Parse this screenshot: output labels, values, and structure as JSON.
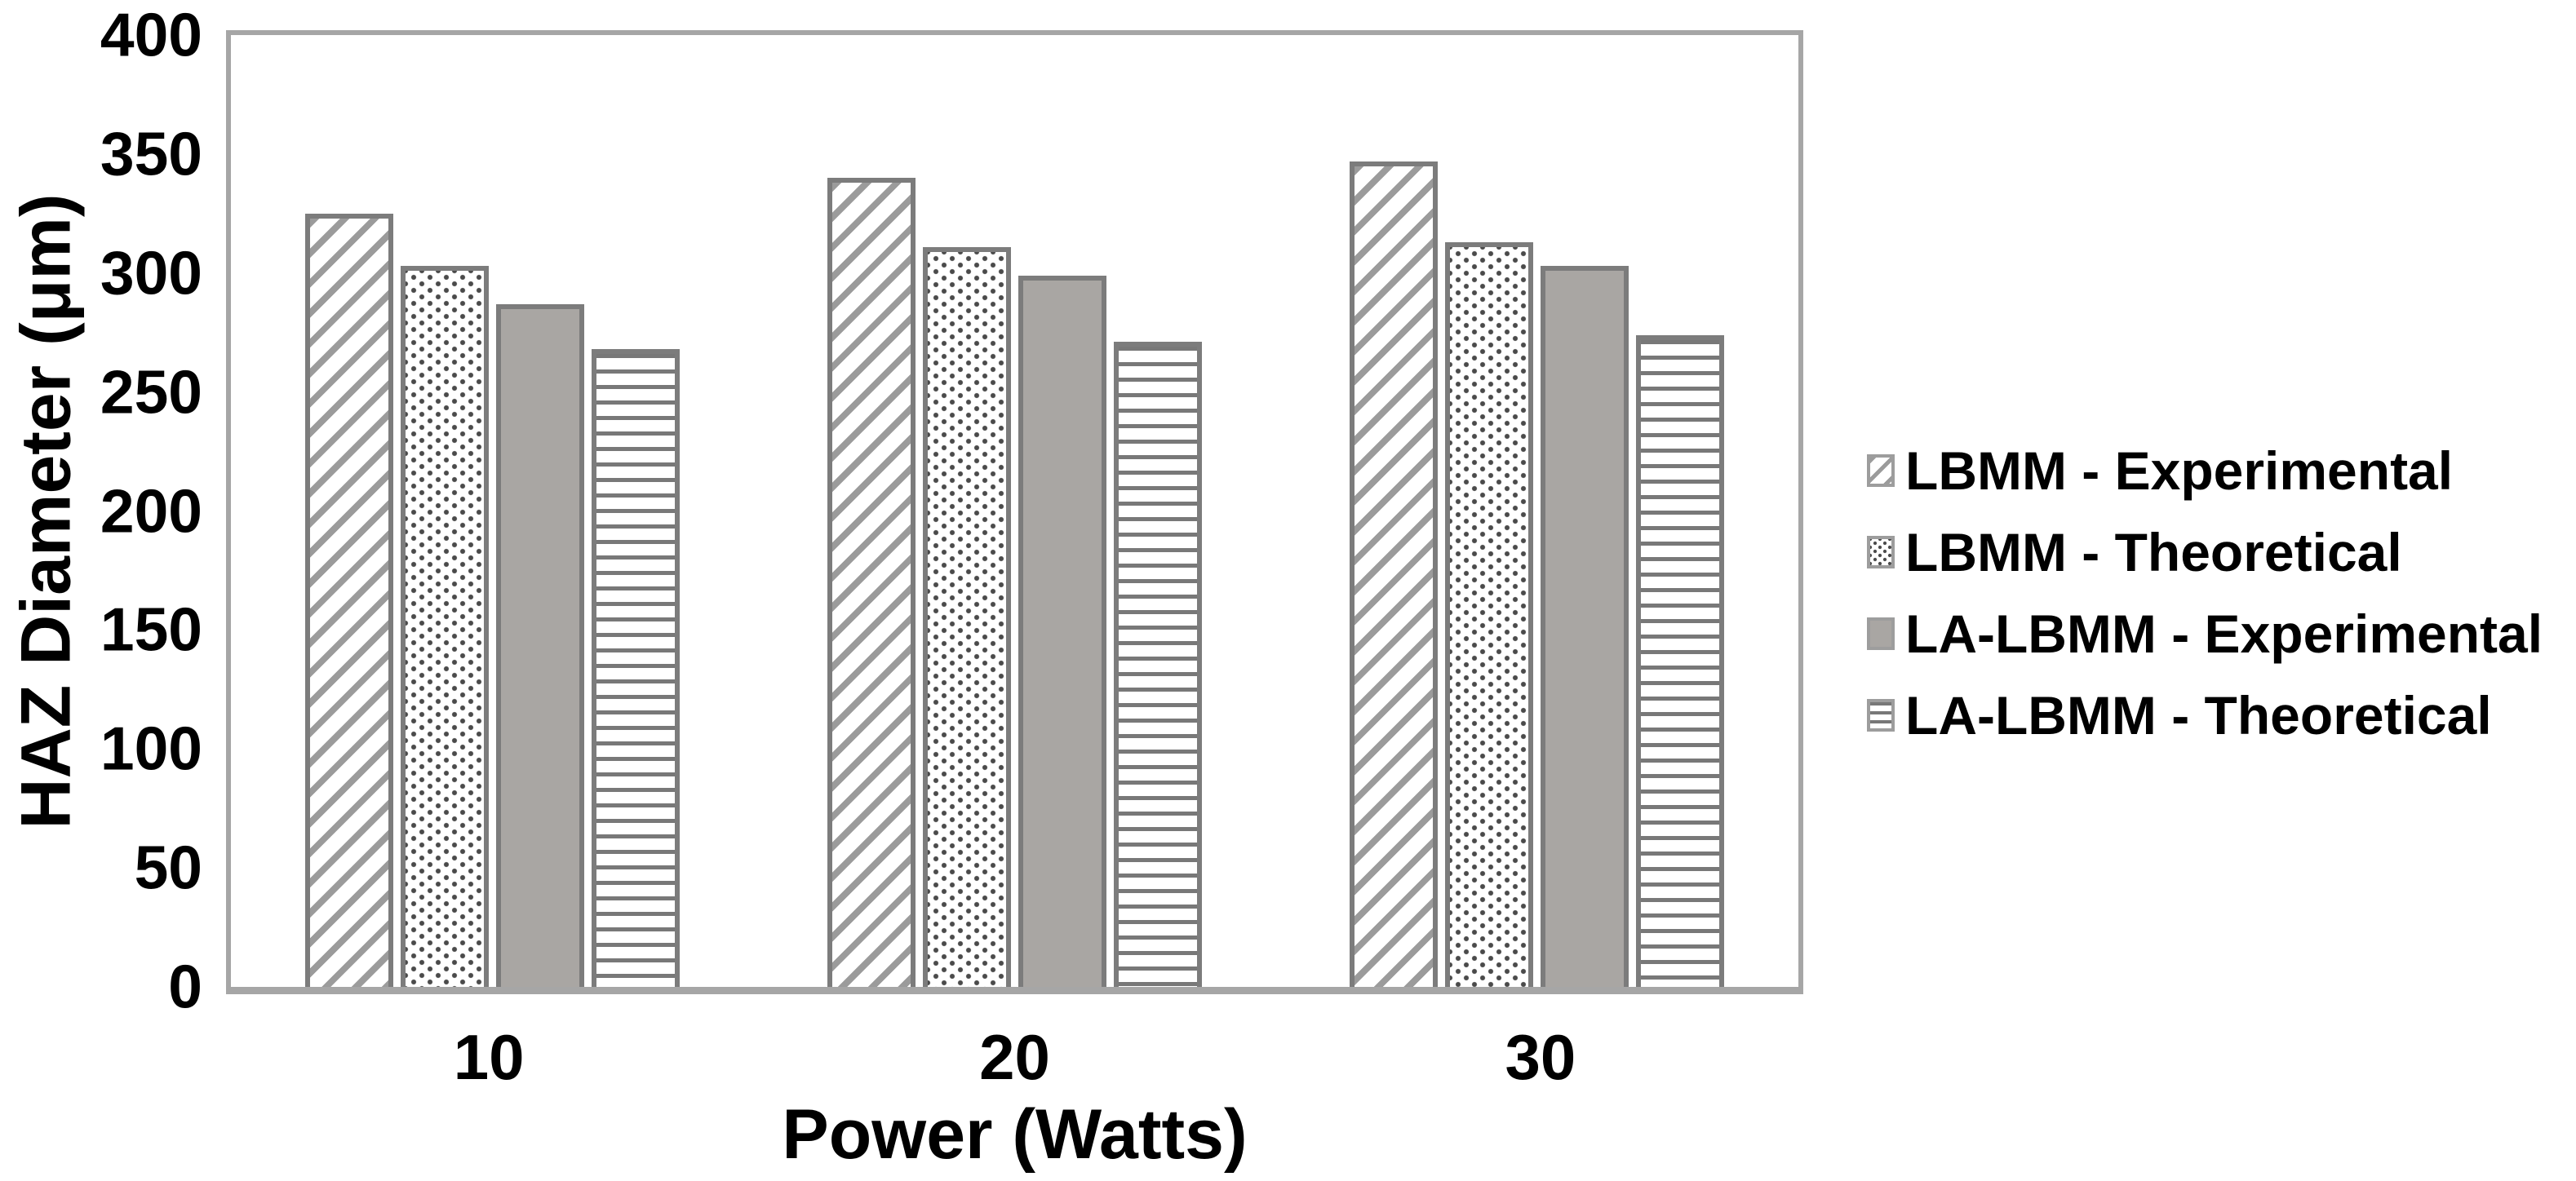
{
  "chart_data": {
    "type": "bar",
    "title": "",
    "xlabel": "Power (Watts)",
    "ylabel": "HAZ Diameter (μm)",
    "categories": [
      "10",
      "20",
      "30"
    ],
    "series": [
      {
        "name": "LBMM - Experimental",
        "pattern": "diagonal-hatch",
        "values": [
          325,
          340,
          347
        ]
      },
      {
        "name": "LBMM - Theoretical",
        "pattern": "dots",
        "values": [
          303,
          311,
          313
        ]
      },
      {
        "name": "LA-LBMM - Experimental",
        "pattern": "solid",
        "values": [
          287,
          299,
          303
        ]
      },
      {
        "name": "LA-LBMM - Theoretical",
        "pattern": "horizontal-lines",
        "values": [
          268,
          271,
          274
        ]
      }
    ],
    "ylim": [
      0,
      400
    ],
    "yticks": [
      0,
      50,
      100,
      150,
      200,
      250,
      300,
      350,
      400
    ],
    "grid": false,
    "legend_position": "right",
    "bar_orientation": "vertical"
  },
  "colors": {
    "background": "#ffffff",
    "frame": "#a6a6a6",
    "bar_border": "#7c7c7c",
    "solid_fill": "#a9a6a3",
    "hatch_line": "#9b9b9b",
    "dot_color": "#4a4a4a",
    "hline_color": "#787878",
    "marker_border": "#9d9d9d",
    "text": "#000000"
  },
  "legend": {
    "items": [
      {
        "label": "LBMM - Experimental",
        "icon": "diagonal-hatch-swatch-icon"
      },
      {
        "label": "LBMM - Theoretical",
        "icon": "dots-swatch-icon"
      },
      {
        "label": "LA-LBMM - Experimental",
        "icon": "solid-swatch-icon"
      },
      {
        "label": "LA-LBMM - Theoretical",
        "icon": "horizontal-lines-swatch-icon"
      }
    ]
  }
}
